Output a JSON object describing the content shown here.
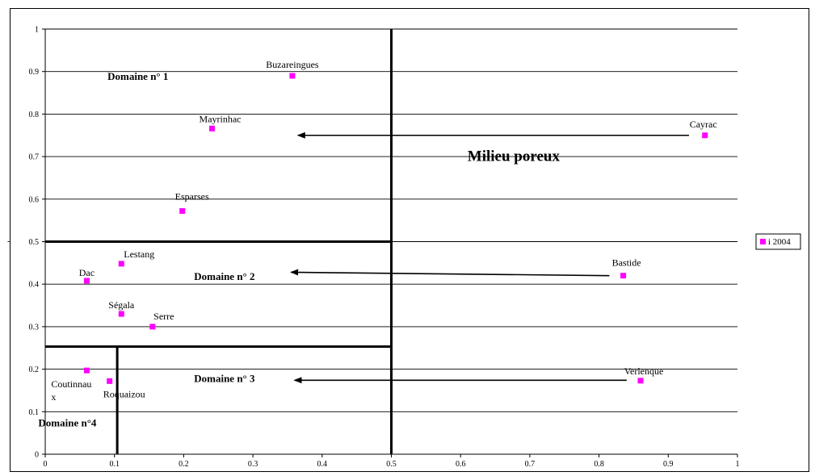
{
  "chart_data": {
    "type": "scatter",
    "title": "",
    "xlabel": "",
    "ylabel": "-",
    "xlim": [
      0,
      1
    ],
    "ylim": [
      0,
      1
    ],
    "x_ticks": [
      "0",
      "0.1",
      "0.2",
      "0.3",
      "0.4",
      "0.5",
      "0.6",
      "0.7",
      "0.8",
      "0.9",
      "1"
    ],
    "y_ticks": [
      "0",
      "0.1",
      "0.2",
      "0.3",
      "0.4",
      "0.5",
      "0.6",
      "0.7",
      "0.8",
      "0.9",
      "1"
    ],
    "grid": "horizontal",
    "legend_position": "right",
    "colors": {
      "points": "#ff00ff",
      "lines": "#000000"
    },
    "series": [
      {
        "name": "i 2004",
        "points": [
          {
            "label": "Buzareingues",
            "x": 0.357,
            "y": 0.89
          },
          {
            "label": "Mayrinhac",
            "x": 0.241,
            "y": 0.766
          },
          {
            "label": "Cayrac",
            "x": 0.953,
            "y": 0.75
          },
          {
            "label": "Esparses",
            "x": 0.198,
            "y": 0.572
          },
          {
            "label": "Lestang",
            "x": 0.11,
            "y": 0.448
          },
          {
            "label": "Bastide",
            "x": 0.835,
            "y": 0.42
          },
          {
            "label": "Dac",
            "x": 0.06,
            "y": 0.408
          },
          {
            "label": "Ségala",
            "x": 0.11,
            "y": 0.33
          },
          {
            "label": "Serre",
            "x": 0.155,
            "y": 0.3
          },
          {
            "label": "Verlenque",
            "x": 0.86,
            "y": 0.173
          },
          {
            "label": "Coutinnau x",
            "x": 0.06,
            "y": 0.197
          },
          {
            "label": "Roquaizou",
            "x": 0.093,
            "y": 0.172
          }
        ]
      }
    ],
    "boundaries": [
      {
        "type": "vertical",
        "x": 0.5,
        "y_from": 0,
        "y_to": 1
      },
      {
        "type": "horizontal",
        "y": 0.5,
        "x_from": 0,
        "x_to": 0.5
      },
      {
        "type": "horizontal",
        "y": 0.253,
        "x_from": 0,
        "x_to": 0.5
      },
      {
        "type": "vertical",
        "x": 0.104,
        "y_from": 0,
        "y_to": 0.253
      }
    ],
    "arrows": [
      {
        "from": [
          0.93,
          0.75
        ],
        "to": [
          0.365,
          0.75
        ]
      },
      {
        "from": [
          0.815,
          0.42
        ],
        "to": [
          0.355,
          0.428
        ]
      },
      {
        "from": [
          0.84,
          0.174
        ],
        "to": [
          0.36,
          0.174
        ]
      }
    ],
    "annotations": [
      {
        "text": "Domaine n° 1",
        "x": 0.09,
        "y": 0.88,
        "style": "domain"
      },
      {
        "text": "Domaine n° 2",
        "x": 0.215,
        "y": 0.41,
        "style": "domain"
      },
      {
        "text": "Domaine n° 3",
        "x": 0.215,
        "y": 0.17,
        "style": "domain"
      },
      {
        "text": "Domaine n°4",
        "x": -0.01,
        "y": 0.065,
        "style": "domain"
      },
      {
        "text": "Milieu poreux",
        "x": 0.61,
        "y": 0.69,
        "style": "milieu"
      }
    ]
  }
}
